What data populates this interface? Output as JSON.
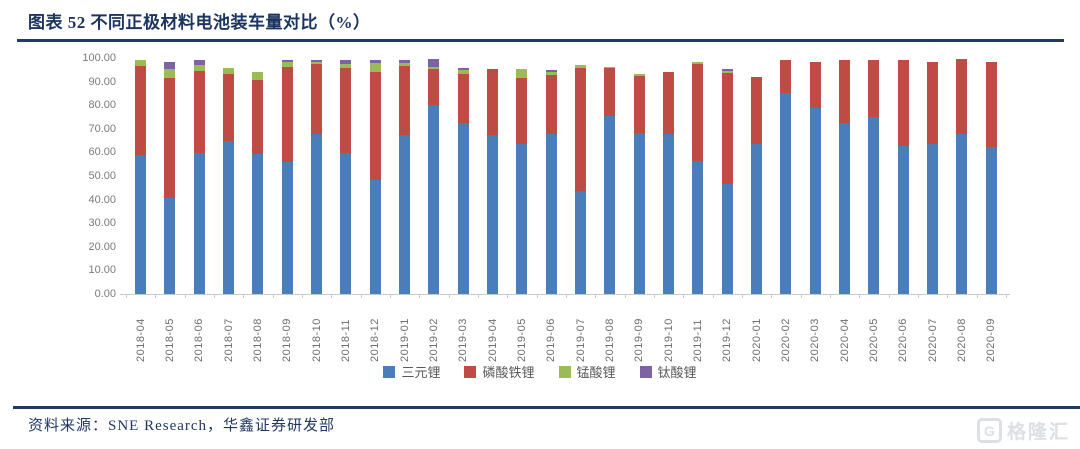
{
  "header": {
    "title": "图表 52 不同正极材料电池装车量对比（%）"
  },
  "chart_data": {
    "type": "bar",
    "stacked": true,
    "title": "图表 52 不同正极材料电池装车量对比（%）",
    "xlabel": "",
    "ylabel": "",
    "ylim": [
      0,
      100
    ],
    "grid": false,
    "legend_position": "bottom",
    "yticks": [
      "0.00",
      "10.00",
      "20.00",
      "30.00",
      "40.00",
      "50.00",
      "60.00",
      "70.00",
      "80.00",
      "90.00",
      "100.00"
    ],
    "categories": [
      "2018-04",
      "2018-05",
      "2018-06",
      "2018-07",
      "2018-08",
      "2018-09",
      "2018-10",
      "2018-11",
      "2018-12",
      "2019-01",
      "2019-02",
      "2019-03",
      "2019-04",
      "2019-05",
      "2019-06",
      "2019-07",
      "2019-08",
      "2019-09",
      "2019-10",
      "2019-11",
      "2019-12",
      "2020-01",
      "2020-02",
      "2020-03",
      "2020-04",
      "2020-05",
      "2020-06",
      "2020-07",
      "2020-08",
      "2020-09"
    ],
    "series": [
      {
        "name": "三元锂",
        "color": "#4a7ebb",
        "values": [
          59.0,
          40.5,
          59.6,
          64.8,
          59.3,
          55.8,
          67.8,
          59.7,
          48.3,
          67.4,
          80.1,
          72.3,
          67.4,
          63.4,
          67.7,
          43.6,
          75.4,
          68.1,
          67.7,
          56.5,
          46.5,
          63.4,
          85.3,
          79.0,
          72.3,
          75.1,
          62.9,
          63.4,
          67.7,
          62.4
        ]
      },
      {
        "name": "磷酸铁锂",
        "color": "#bf4b45",
        "values": [
          37.7,
          51.2,
          34.9,
          28.3,
          31.4,
          40.5,
          29.5,
          35.9,
          45.9,
          29.1,
          15.1,
          21.1,
          27.9,
          28.3,
          25.1,
          52.2,
          20.3,
          24.2,
          26.5,
          41.1,
          47.0,
          28.5,
          14.0,
          19.2,
          27.0,
          24.2,
          36.4,
          35.0,
          31.4,
          35.8
        ]
      },
      {
        "name": "锰酸锂",
        "color": "#9bbb59",
        "values": [
          2.6,
          3.8,
          2.7,
          2.5,
          3.5,
          2.2,
          1.1,
          2.0,
          3.7,
          1.5,
          1.1,
          1.4,
          0.0,
          3.6,
          1.4,
          1.2,
          0.5,
          1.1,
          0.0,
          0.8,
          0.8,
          0.0,
          0.0,
          0.0,
          0.0,
          0.0,
          0.0,
          0.0,
          0.0,
          0.0
        ]
      },
      {
        "name": "钛酸锂",
        "color": "#7d63a5",
        "values": [
          0.0,
          2.9,
          1.8,
          0.0,
          0.0,
          0.8,
          0.7,
          1.5,
          1.2,
          1.1,
          3.5,
          0.8,
          0.0,
          0.0,
          0.9,
          0.0,
          0.0,
          0.0,
          0.0,
          0.0,
          1.0,
          0.0,
          0.0,
          0.0,
          0.0,
          0.0,
          0.0,
          0.0,
          0.5,
          0.0
        ]
      }
    ]
  },
  "footer": {
    "source_label": "资料来源：SNE Research，华鑫证券研发部"
  },
  "watermark": {
    "icon": "G",
    "text": "格隆汇"
  }
}
